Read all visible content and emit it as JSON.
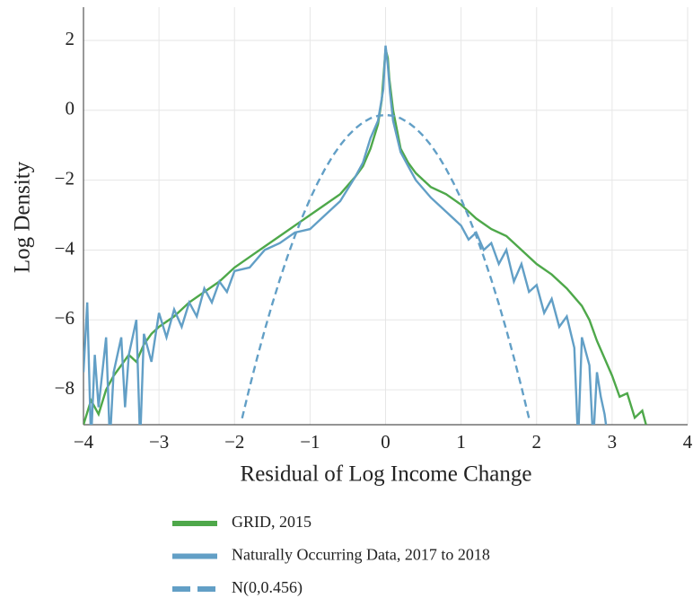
{
  "chart_data": {
    "type": "line",
    "xlabel": "Residual of Log Income Change",
    "ylabel": "Log Density",
    "xlim": [
      -4,
      4
    ],
    "ylim": [
      -9,
      2.95
    ],
    "xticks": [
      {
        "value": -4,
        "label": "−4"
      },
      {
        "value": -3,
        "label": "−3"
      },
      {
        "value": -2,
        "label": "−2"
      },
      {
        "value": -1,
        "label": "−1"
      },
      0,
      1,
      2,
      3,
      4
    ],
    "yticks": [
      {
        "value": -8,
        "label": "−8"
      },
      {
        "value": -6,
        "label": "−6"
      },
      {
        "value": -4,
        "label": "−4"
      },
      {
        "value": -2,
        "label": "−2"
      },
      0,
      2
    ],
    "grid": true,
    "legend": "bottom",
    "series": [
      {
        "name": "GRID, 2015",
        "color": "#4ea84a",
        "style": "solid",
        "x": [
          -4,
          -3.9,
          -3.8,
          -3.7,
          -3.6,
          -3.5,
          -3.4,
          -3.3,
          -3.2,
          -3.1,
          -3,
          -2.8,
          -2.6,
          -2.4,
          -2.2,
          -2,
          -1.8,
          -1.6,
          -1.4,
          -1.2,
          -1,
          -0.8,
          -0.6,
          -0.4,
          -0.3,
          -0.2,
          -0.1,
          -0.05,
          0,
          0.03,
          0.05,
          0.1,
          0.2,
          0.3,
          0.4,
          0.6,
          0.8,
          1,
          1.2,
          1.4,
          1.6,
          1.8,
          2,
          2.2,
          2.4,
          2.6,
          2.7,
          2.8,
          2.9,
          3,
          3.1,
          3.2,
          3.3,
          3.4,
          3.45
        ],
        "values": [
          -9,
          -8.3,
          -8.7,
          -8.0,
          -7.6,
          -7.3,
          -7.0,
          -7.2,
          -6.7,
          -6.4,
          -6.2,
          -5.9,
          -5.5,
          -5.2,
          -4.9,
          -4.5,
          -4.2,
          -3.9,
          -3.6,
          -3.3,
          -3.0,
          -2.7,
          -2.4,
          -1.9,
          -1.6,
          -1.1,
          -0.4,
          0.3,
          1.75,
          1.5,
          0.9,
          0,
          -1.1,
          -1.5,
          -1.8,
          -2.2,
          -2.4,
          -2.7,
          -3.1,
          -3.4,
          -3.6,
          -4.0,
          -4.4,
          -4.7,
          -5.1,
          -5.6,
          -6.0,
          -6.6,
          -7.1,
          -7.6,
          -8.2,
          -8.1,
          -8.8,
          -8.6,
          -9
        ]
      },
      {
        "name": "Naturally Occurring Data, 2017 to 2018",
        "color": "#629fc6",
        "style": "solid",
        "x": [
          -4,
          -3.95,
          -3.9,
          -3.85,
          -3.8,
          -3.7,
          -3.65,
          -3.6,
          -3.5,
          -3.45,
          -3.4,
          -3.3,
          -3.25,
          -3.2,
          -3.1,
          -3.0,
          -2.9,
          -2.8,
          -2.7,
          -2.6,
          -2.5,
          -2.4,
          -2.3,
          -2.2,
          -2.1,
          -2.0,
          -1.8,
          -1.6,
          -1.4,
          -1.2,
          -1.0,
          -0.8,
          -0.6,
          -0.4,
          -0.3,
          -0.2,
          -0.1,
          -0.03,
          0,
          0.03,
          0.06,
          0.1,
          0.2,
          0.3,
          0.4,
          0.6,
          0.8,
          1.0,
          1.1,
          1.2,
          1.3,
          1.4,
          1.5,
          1.6,
          1.7,
          1.8,
          1.9,
          2.0,
          2.1,
          2.2,
          2.3,
          2.4,
          2.5,
          2.55,
          2.6,
          2.7,
          2.75,
          2.8,
          2.85,
          2.9,
          2.95
        ],
        "values": [
          -7.5,
          -5.5,
          -9.5,
          -7.0,
          -8.5,
          -6.5,
          -9.5,
          -7.5,
          -6.5,
          -8.5,
          -7.0,
          -6.0,
          -9.5,
          -6.4,
          -7.2,
          -5.8,
          -6.5,
          -5.7,
          -6.2,
          -5.5,
          -5.9,
          -5.1,
          -5.5,
          -4.9,
          -5.2,
          -4.6,
          -4.5,
          -4.0,
          -3.8,
          -3.5,
          -3.4,
          -3.0,
          -2.6,
          -1.9,
          -1.5,
          -0.8,
          -0.3,
          0.6,
          1.85,
          1.3,
          0.5,
          -0.3,
          -1.2,
          -1.6,
          -2.0,
          -2.5,
          -2.9,
          -3.3,
          -3.7,
          -3.5,
          -4.0,
          -3.8,
          -4.4,
          -4.0,
          -4.9,
          -4.4,
          -5.2,
          -5.0,
          -5.8,
          -5.4,
          -6.2,
          -5.9,
          -6.8,
          -9.5,
          -6.5,
          -7.3,
          -9.5,
          -7.5,
          -8.2,
          -8.7,
          -9.5
        ]
      },
      {
        "name": "N(0,0.456)",
        "color": "#629fc6",
        "style": "dashed",
        "x": [
          -1.9,
          -1.8,
          -1.7,
          -1.6,
          -1.5,
          -1.4,
          -1.3,
          -1.2,
          -1.1,
          -1.0,
          -0.9,
          -0.8,
          -0.7,
          -0.6,
          -0.5,
          -0.4,
          -0.3,
          -0.2,
          -0.1,
          0,
          0.1,
          0.2,
          0.3,
          0.4,
          0.5,
          0.6,
          0.7,
          0.8,
          0.9,
          1.0,
          1.1,
          1.2,
          1.3,
          1.4,
          1.5,
          1.6,
          1.7,
          1.8,
          1.9
        ],
        "values": [
          -8.814,
          -7.924,
          -7.083,
          -6.289,
          -5.544,
          -4.847,
          -4.198,
          -3.596,
          -3.043,
          -2.538,
          -2.082,
          -1.673,
          -1.312,
          -1.0,
          -0.735,
          -0.519,
          -0.35,
          -0.23,
          -0.158,
          -0.134,
          -0.158,
          -0.23,
          -0.35,
          -0.519,
          -0.735,
          -1.0,
          -1.312,
          -1.673,
          -2.082,
          -2.538,
          -3.043,
          -3.596,
          -4.198,
          -4.847,
          -5.544,
          -6.289,
          -7.083,
          -7.924,
          -8.814
        ]
      }
    ]
  }
}
